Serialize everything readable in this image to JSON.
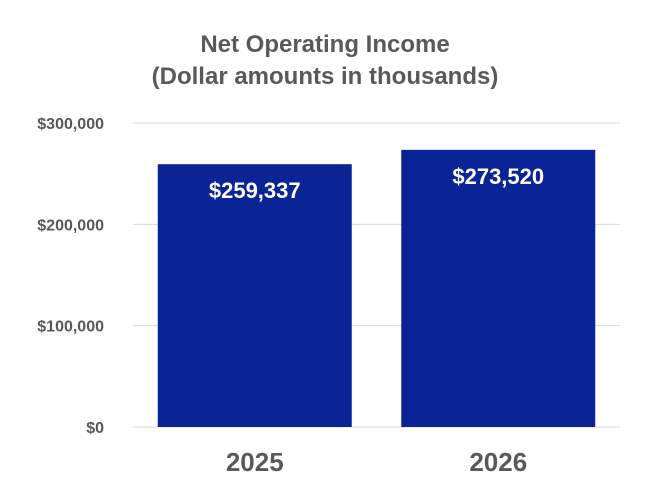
{
  "chart_data": {
    "type": "bar",
    "title": "Net Operating Income",
    "subtitle": "(Dollar amounts in thousands)",
    "categories": [
      "2025",
      "2026"
    ],
    "values": [
      259337,
      273520
    ],
    "data_labels": [
      "$259,337",
      "$273,520"
    ],
    "ylim": [
      0,
      300000
    ],
    "y_ticks": [
      {
        "value": 0,
        "label": "$0"
      },
      {
        "value": 100000,
        "label": "$100,000"
      },
      {
        "value": 200000,
        "label": "$200,000"
      },
      {
        "value": 300000,
        "label": "$300,000"
      }
    ],
    "xlabel": "",
    "ylabel": "",
    "grid": true,
    "legend": "none",
    "bar_color": "#0b2495",
    "grid_color": "#d9d9d9",
    "text_color": "#595959"
  }
}
